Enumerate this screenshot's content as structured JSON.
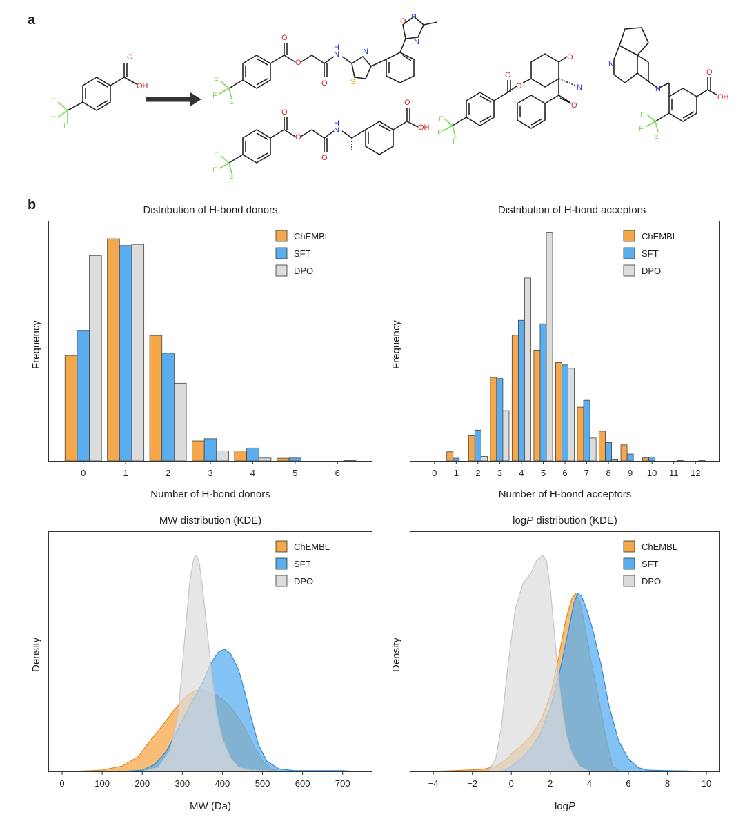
{
  "panel_a": {
    "letter": "a",
    "atoms": {
      "F": "F",
      "O": "O",
      "OH": "OH",
      "N": "N",
      "H": "H",
      "S": "S",
      "NH": "H"
    }
  },
  "panel_b": {
    "letter": "b"
  },
  "colors": {
    "ChEMBL": "#F5A84B",
    "SFT": "#5AAEF0",
    "DPO": "#DCDCDC"
  },
  "legend": [
    "ChEMBL",
    "SFT",
    "DPO"
  ],
  "chart_data": [
    {
      "type": "bar",
      "title": "Distribution of H-bond donors",
      "xlabel": "Number of H-bond donors",
      "ylabel": "Frequency",
      "categories": [
        "0",
        "1",
        "2",
        "3",
        "4",
        "5",
        "6"
      ],
      "series": [
        {
          "name": "ChEMBL",
          "values": [
            0.475,
            1.0,
            0.565,
            0.09,
            0.045,
            0.012,
            0.0
          ]
        },
        {
          "name": "SFT",
          "values": [
            0.585,
            0.97,
            0.485,
            0.1,
            0.058,
            0.013,
            0.0
          ]
        },
        {
          "name": "DPO",
          "values": [
            0.925,
            0.975,
            0.35,
            0.045,
            0.013,
            0.0,
            0.003
          ]
        }
      ],
      "ylim": [
        0,
        1.05
      ],
      "legend_position": "top-right"
    },
    {
      "type": "bar",
      "title": "Distribution of H-bond acceptors",
      "xlabel": "Number of H-bond acceptors",
      "ylabel": "Frequency",
      "categories": [
        "0",
        "1",
        "2",
        "3",
        "4",
        "5",
        "6",
        "7",
        "8",
        "9",
        "10",
        "11",
        "12"
      ],
      "series": [
        {
          "name": "ChEMBL",
          "values": [
            0.0,
            0.04,
            0.11,
            0.365,
            0.55,
            0.485,
            0.43,
            0.235,
            0.13,
            0.07,
            0.013,
            0.0,
            0.0
          ]
        },
        {
          "name": "SFT",
          "values": [
            0.0,
            0.012,
            0.135,
            0.36,
            0.615,
            0.6,
            0.42,
            0.265,
            0.08,
            0.03,
            0.017,
            0.0,
            0.0
          ]
        },
        {
          "name": "DPO",
          "values": [
            0.0,
            0.0,
            0.02,
            0.22,
            0.8,
            1.0,
            0.405,
            0.1,
            0.008,
            0.0,
            0.0,
            0.003,
            0.003
          ]
        }
      ],
      "ylim": [
        0,
        1.02
      ],
      "legend_position": "top-right"
    },
    {
      "type": "area",
      "title": "MW distribution (KDE)",
      "xlabel": "MW (Da)",
      "ylabel": "Density",
      "xlim": [
        0,
        740
      ],
      "xticks": [
        "0",
        "100",
        "200",
        "300",
        "400",
        "500",
        "600",
        "700"
      ],
      "series": [
        {
          "name": "ChEMBL",
          "x": [
            30,
            100,
            150,
            190,
            220,
            250,
            280,
            310,
            330,
            345,
            360,
            380,
            400,
            420,
            440,
            460,
            480,
            500,
            520,
            540
          ],
          "y": [
            0,
            0.005,
            0.02,
            0.055,
            0.115,
            0.17,
            0.23,
            0.28,
            0.3,
            0.305,
            0.3,
            0.285,
            0.27,
            0.24,
            0.2,
            0.15,
            0.09,
            0.04,
            0.01,
            0
          ]
        },
        {
          "name": "SFT",
          "x": [
            150,
            200,
            230,
            260,
            290,
            320,
            350,
            370,
            390,
            405,
            420,
            440,
            455,
            470,
            490,
            510,
            540,
            580,
            650,
            700,
            730
          ],
          "y": [
            0,
            0.005,
            0.025,
            0.075,
            0.16,
            0.25,
            0.33,
            0.4,
            0.445,
            0.455,
            0.44,
            0.38,
            0.3,
            0.21,
            0.1,
            0.04,
            0.01,
            0.003,
            0.003,
            0.003,
            0
          ]
        },
        {
          "name": "DPO",
          "x": [
            200,
            240,
            270,
            290,
            305,
            318,
            328,
            335,
            342,
            350,
            360,
            372,
            385,
            400,
            420,
            440,
            470,
            520,
            560
          ],
          "y": [
            0,
            0.015,
            0.08,
            0.22,
            0.48,
            0.7,
            0.79,
            0.805,
            0.78,
            0.69,
            0.55,
            0.38,
            0.22,
            0.12,
            0.05,
            0.015,
            0.005,
            0.002,
            0
          ]
        }
      ],
      "legend_position": "top-right"
    },
    {
      "type": "area",
      "title": "logP distribution (KDE)",
      "title_main": "log",
      "title_italic": "P",
      "title_rest": " distribution (KDE)",
      "xlabel": "logP",
      "xlabel_main": "log",
      "xlabel_italic": "P",
      "ylabel": "Density",
      "xlim": [
        -4.5,
        10
      ],
      "xticks": [
        "−4",
        "−2",
        "0",
        "2",
        "4",
        "6",
        "8",
        "10"
      ],
      "series": [
        {
          "name": "ChEMBL",
          "x": [
            -4.3,
            -3,
            -1.5,
            -0.8,
            -0.3,
            0,
            0.5,
            1,
            1.5,
            2,
            2.4,
            2.8,
            3.1,
            3.3,
            3.5,
            3.8,
            4.1,
            4.4,
            4.8,
            5.2,
            5.6
          ],
          "y": [
            0,
            0.003,
            0.008,
            0.02,
            0.045,
            0.07,
            0.1,
            0.14,
            0.2,
            0.3,
            0.44,
            0.6,
            0.68,
            0.7,
            0.67,
            0.56,
            0.43,
            0.32,
            0.15,
            0.02,
            0
          ]
        },
        {
          "name": "SFT",
          "x": [
            -0.5,
            0,
            0.5,
            1,
            1.5,
            2,
            2.5,
            3,
            3.2,
            3.4,
            3.6,
            3.9,
            4.2,
            4.6,
            5,
            5.5,
            6,
            6.5,
            7,
            8,
            9,
            9.6
          ],
          "y": [
            0,
            0.02,
            0.05,
            0.09,
            0.15,
            0.25,
            0.4,
            0.58,
            0.66,
            0.7,
            0.69,
            0.63,
            0.55,
            0.42,
            0.26,
            0.12,
            0.05,
            0.015,
            0.005,
            0.003,
            0.002,
            0
          ]
        },
        {
          "name": "DPO",
          "x": [
            -1.2,
            -0.8,
            -0.5,
            -0.2,
            0.2,
            0.6,
            1,
            1.3,
            1.6,
            1.8,
            2,
            2.2,
            2.4,
            2.6,
            2.8,
            3.1,
            3.5,
            4
          ],
          "y": [
            0,
            0.05,
            0.18,
            0.4,
            0.64,
            0.74,
            0.78,
            0.83,
            0.85,
            0.83,
            0.72,
            0.55,
            0.38,
            0.25,
            0.15,
            0.07,
            0.02,
            0
          ]
        }
      ],
      "legend_position": "top-right"
    }
  ]
}
